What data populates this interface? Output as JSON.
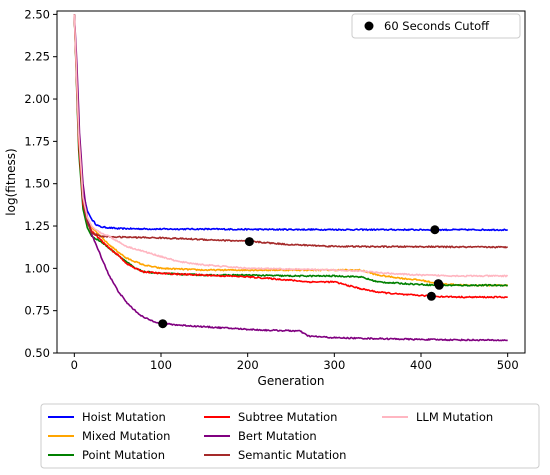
{
  "chart_data": {
    "type": "line",
    "title": "",
    "xlabel": "Generation",
    "ylabel": "log(fitness)",
    "xlim": [
      -20,
      520
    ],
    "ylim": [
      0.5,
      2.52
    ],
    "xticks": [
      0,
      100,
      200,
      300,
      400,
      500
    ],
    "yticks": [
      0.5,
      0.75,
      1.0,
      1.25,
      1.5,
      1.75,
      2.0,
      2.25,
      2.5
    ],
    "ytick_labels": [
      "0.50",
      "0.75",
      "1.00",
      "1.25",
      "1.50",
      "1.75",
      "2.00",
      "2.25",
      "2.50"
    ],
    "grid": false,
    "legend_position": "below",
    "cutoff_legend_label": "60 Seconds Cutoff",
    "cutoff_legend_position": "top-right",
    "series": [
      {
        "name": "Hoist Mutation",
        "color": "#0000ff",
        "points": [
          [
            0,
            2.5
          ],
          [
            5,
            1.8
          ],
          [
            10,
            1.45
          ],
          [
            15,
            1.34
          ],
          [
            20,
            1.29
          ],
          [
            25,
            1.26
          ],
          [
            30,
            1.245
          ],
          [
            40,
            1.24
          ],
          [
            50,
            1.235
          ],
          [
            100,
            1.232
          ],
          [
            150,
            1.232
          ],
          [
            200,
            1.23
          ],
          [
            300,
            1.229
          ],
          [
            400,
            1.228
          ],
          [
            500,
            1.228
          ]
        ],
        "cutoff": [
          416,
          1.228
        ]
      },
      {
        "name": "Mixed Mutation",
        "color": "#ffa500",
        "points": [
          [
            0,
            2.5
          ],
          [
            5,
            1.75
          ],
          [
            10,
            1.4
          ],
          [
            15,
            1.3
          ],
          [
            20,
            1.24
          ],
          [
            30,
            1.19
          ],
          [
            40,
            1.14
          ],
          [
            50,
            1.1
          ],
          [
            60,
            1.06
          ],
          [
            70,
            1.04
          ],
          [
            80,
            1.02
          ],
          [
            100,
            1.0
          ],
          [
            150,
            0.99
          ],
          [
            200,
            0.99
          ],
          [
            250,
            0.99
          ],
          [
            300,
            0.99
          ],
          [
            330,
            0.99
          ],
          [
            350,
            0.96
          ],
          [
            380,
            0.94
          ],
          [
            400,
            0.93
          ],
          [
            420,
            0.91
          ],
          [
            450,
            0.9
          ],
          [
            500,
            0.9
          ]
        ],
        "cutoff": [
          420,
          0.91
        ]
      },
      {
        "name": "Point Mutation",
        "color": "#008000",
        "points": [
          [
            0,
            2.5
          ],
          [
            5,
            1.7
          ],
          [
            10,
            1.35
          ],
          [
            15,
            1.24
          ],
          [
            20,
            1.19
          ],
          [
            30,
            1.16
          ],
          [
            40,
            1.12
          ],
          [
            50,
            1.08
          ],
          [
            60,
            1.04
          ],
          [
            70,
            1.0
          ],
          [
            80,
            0.98
          ],
          [
            100,
            0.97
          ],
          [
            150,
            0.96
          ],
          [
            200,
            0.96
          ],
          [
            250,
            0.955
          ],
          [
            300,
            0.955
          ],
          [
            330,
            0.95
          ],
          [
            350,
            0.92
          ],
          [
            380,
            0.91
          ],
          [
            400,
            0.905
          ],
          [
            420,
            0.9
          ],
          [
            450,
            0.9
          ],
          [
            500,
            0.9
          ]
        ],
        "cutoff": [
          421,
          0.9
        ]
      },
      {
        "name": "Subtree Mutation",
        "color": "#ff0000",
        "points": [
          [
            0,
            2.5
          ],
          [
            5,
            1.75
          ],
          [
            10,
            1.38
          ],
          [
            15,
            1.28
          ],
          [
            20,
            1.22
          ],
          [
            30,
            1.17
          ],
          [
            40,
            1.12
          ],
          [
            50,
            1.08
          ],
          [
            60,
            1.03
          ],
          [
            70,
            1.0
          ],
          [
            80,
            0.98
          ],
          [
            100,
            0.97
          ],
          [
            150,
            0.96
          ],
          [
            200,
            0.95
          ],
          [
            250,
            0.93
          ],
          [
            270,
            0.92
          ],
          [
            300,
            0.92
          ],
          [
            330,
            0.88
          ],
          [
            350,
            0.86
          ],
          [
            380,
            0.845
          ],
          [
            400,
            0.84
          ],
          [
            412,
            0.835
          ],
          [
            450,
            0.83
          ],
          [
            500,
            0.83
          ]
        ],
        "cutoff": [
          412,
          0.835
        ]
      },
      {
        "name": "Bert Mutation",
        "color": "#800080",
        "points": [
          [
            0,
            2.5
          ],
          [
            3,
            2.2
          ],
          [
            6,
            1.8
          ],
          [
            10,
            1.5
          ],
          [
            15,
            1.3
          ],
          [
            20,
            1.2
          ],
          [
            30,
            1.08
          ],
          [
            40,
            0.96
          ],
          [
            50,
            0.87
          ],
          [
            60,
            0.8
          ],
          [
            70,
            0.75
          ],
          [
            80,
            0.71
          ],
          [
            90,
            0.69
          ],
          [
            100,
            0.675
          ],
          [
            120,
            0.665
          ],
          [
            150,
            0.655
          ],
          [
            200,
            0.64
          ],
          [
            220,
            0.635
          ],
          [
            260,
            0.63
          ],
          [
            270,
            0.6
          ],
          [
            300,
            0.59
          ],
          [
            350,
            0.585
          ],
          [
            400,
            0.58
          ],
          [
            450,
            0.577
          ],
          [
            500,
            0.575
          ]
        ],
        "cutoff": [
          102,
          0.673
        ]
      },
      {
        "name": "Semantic Mutation",
        "color": "#a52a2a",
        "points": [
          [
            0,
            2.5
          ],
          [
            5,
            1.8
          ],
          [
            10,
            1.4
          ],
          [
            15,
            1.27
          ],
          [
            20,
            1.21
          ],
          [
            30,
            1.19
          ],
          [
            50,
            1.185
          ],
          [
            100,
            1.18
          ],
          [
            150,
            1.17
          ],
          [
            200,
            1.16
          ],
          [
            250,
            1.14
          ],
          [
            300,
            1.13
          ],
          [
            350,
            1.128
          ],
          [
            400,
            1.128
          ],
          [
            450,
            1.126
          ],
          [
            500,
            1.125
          ]
        ],
        "cutoff": [
          202,
          1.158
        ]
      },
      {
        "name": "LLM Mutation",
        "color": "#ffb6c1",
        "points": [
          [
            0,
            2.5
          ],
          [
            5,
            1.8
          ],
          [
            10,
            1.42
          ],
          [
            15,
            1.3
          ],
          [
            20,
            1.25
          ],
          [
            30,
            1.21
          ],
          [
            40,
            1.19
          ],
          [
            50,
            1.16
          ],
          [
            60,
            1.13
          ],
          [
            80,
            1.1
          ],
          [
            100,
            1.07
          ],
          [
            120,
            1.04
          ],
          [
            150,
            1.02
          ],
          [
            200,
            1.0
          ],
          [
            250,
            0.995
          ],
          [
            300,
            0.99
          ],
          [
            330,
            0.985
          ],
          [
            350,
            0.975
          ],
          [
            380,
            0.965
          ],
          [
            400,
            0.96
          ],
          [
            420,
            0.958
          ],
          [
            450,
            0.955
          ],
          [
            500,
            0.955
          ]
        ],
        "cutoff": null
      }
    ]
  }
}
